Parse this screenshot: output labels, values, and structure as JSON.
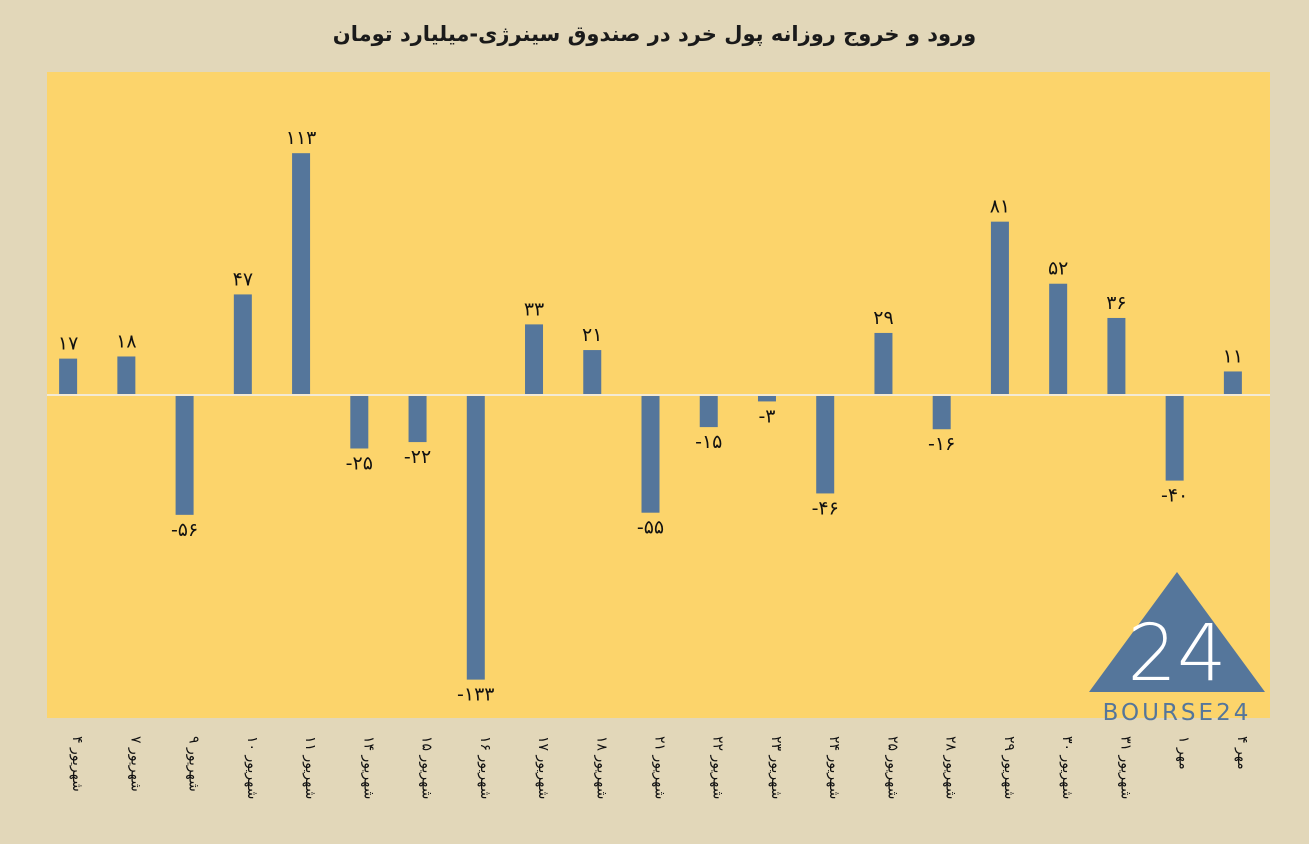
{
  "chart_data": {
    "type": "bar",
    "title": "ورود و خروج روزانه پول خرد در صندوق سینرژی-میلیارد تومان",
    "xlabel": "",
    "ylabel": "",
    "ylim": [
      -150,
      120
    ],
    "grid": false,
    "legend": "none",
    "categories": [
      "۴ شهریور",
      "۷ شهریور",
      "۹ شهریور",
      "۱۰ شهریور",
      "۱۱ شهریور",
      "۱۴ شهریور",
      "۱۵ شهریور",
      "۱۶ شهریور",
      "۱۷ شهریور",
      "۱۸ شهریور",
      "۲۱ شهریور",
      "۲۲ شهریور",
      "۲۳ شهریور",
      "۲۴ شهریور",
      "۲۵ شهریور",
      "۲۸ شهریور",
      "۲۹ شهریور",
      "۳۰ شهریور",
      "۳۱ شهریور",
      "۱ مهر",
      "۴ مهر"
    ],
    "values": [
      17,
      18,
      -56,
      47,
      113,
      -25,
      -22,
      -133,
      33,
      21,
      -55,
      -15,
      -3,
      -46,
      29,
      -16,
      81,
      52,
      36,
      -40,
      11
    ],
    "value_labels": [
      "۱۷",
      "۱۸",
      "-۵۶",
      "۴۷",
      "۱۱۳",
      "-۲۵",
      "-۲۲",
      "-۱۳۳",
      "۳۳",
      "۲۱",
      "-۵۵",
      "-۱۵",
      "-۳",
      "-۴۶",
      "۲۹",
      "-۱۶",
      "۸۱",
      "۵۲",
      "۳۶",
      "-۴۰",
      "۱۱"
    ]
  },
  "colors": {
    "background": "#e2d7b9",
    "plot_area": "#fcd46b",
    "bar": "#55769b",
    "zero_line": "#f3ead4"
  },
  "logo": {
    "mark": "24",
    "text": "BOURSE24"
  }
}
